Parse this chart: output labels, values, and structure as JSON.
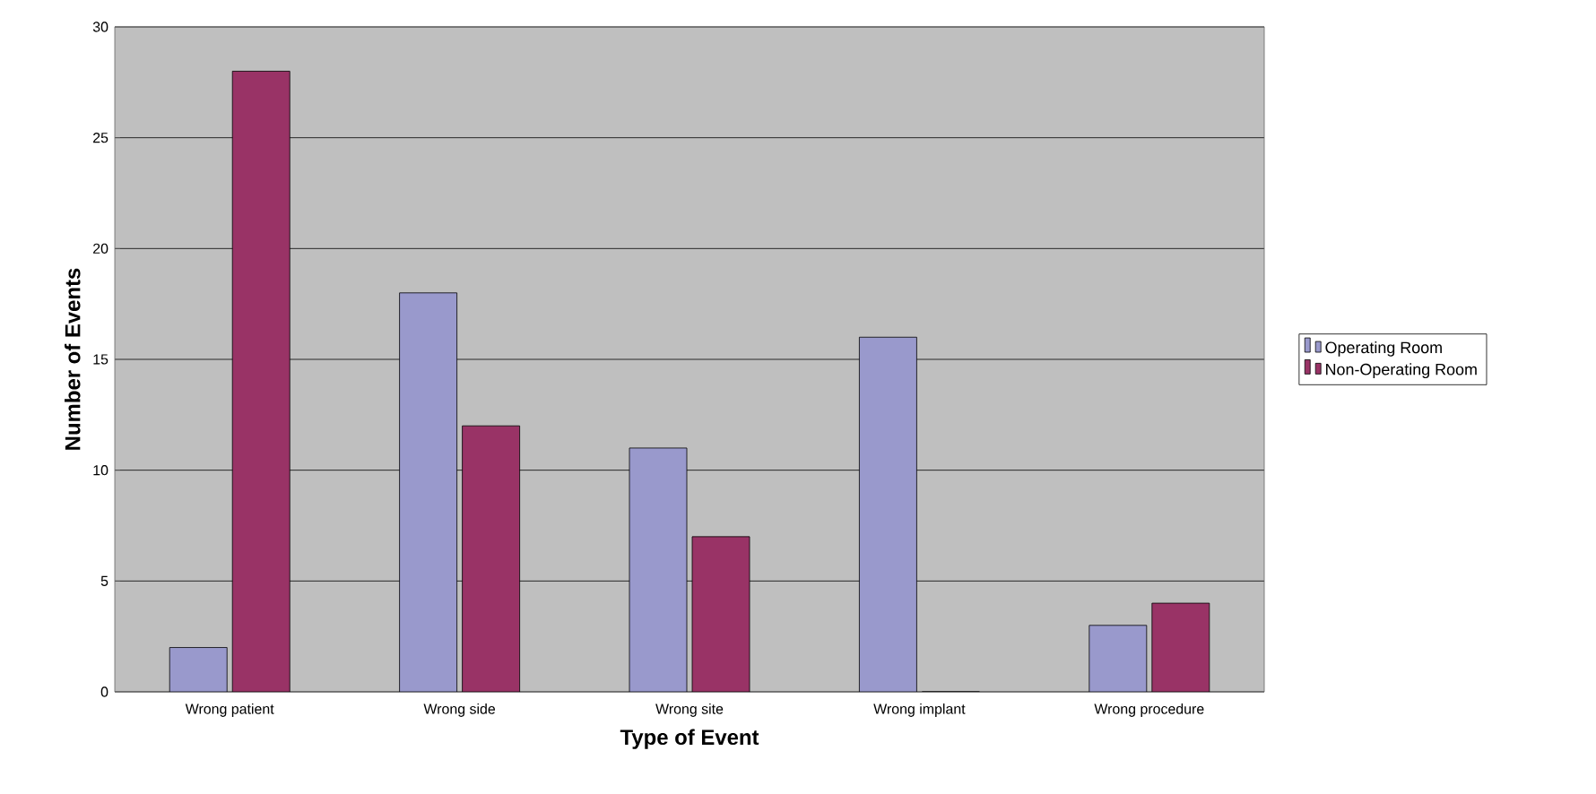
{
  "chart_data": {
    "type": "bar",
    "xlabel": "Type of Event",
    "ylabel": "Number of Events",
    "categories": [
      "Wrong patient",
      "Wrong side",
      "Wrong site",
      "Wrong implant",
      "Wrong procedure"
    ],
    "series": [
      {
        "name": "Operating Room",
        "color": "#9999cc",
        "values": [
          2,
          18,
          11,
          16,
          3
        ]
      },
      {
        "name": "Non-Operating Room",
        "color": "#993366",
        "values": [
          28,
          12,
          7,
          0,
          4
        ]
      }
    ],
    "ylim": [
      0,
      30
    ],
    "yticks": [
      0,
      5,
      10,
      15,
      20,
      25,
      30
    ],
    "grid": "y",
    "legend": "right"
  }
}
